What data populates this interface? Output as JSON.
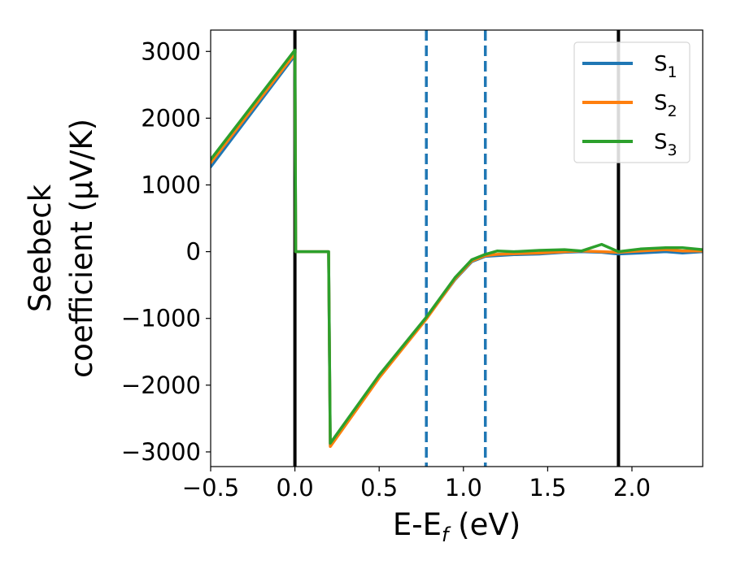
{
  "chart_data": {
    "type": "line",
    "xlabel": {
      "base": "E-E",
      "sub": "f",
      "suffix": " (eV)"
    },
    "ylabel": {
      "line1": "Seebeck",
      "line2": "coefficient  (μV/K)"
    },
    "xlim": [
      -0.5,
      2.42
    ],
    "ylim": [
      -3220,
      3320
    ],
    "xticks": [
      {
        "value": -0.5,
        "label": "−0.5"
      },
      {
        "value": 0.0,
        "label": "0.0"
      },
      {
        "value": 0.5,
        "label": "0.5"
      },
      {
        "value": 1.0,
        "label": "1.0"
      },
      {
        "value": 1.5,
        "label": "1.5"
      },
      {
        "value": 2.0,
        "label": "2.0"
      }
    ],
    "yticks": [
      {
        "value": 3000,
        "label": "3000"
      },
      {
        "value": 2000,
        "label": "2000"
      },
      {
        "value": 1000,
        "label": "1000"
      },
      {
        "value": 0,
        "label": "0"
      },
      {
        "value": -1000,
        "label": "−1000"
      },
      {
        "value": -2000,
        "label": "−2000"
      },
      {
        "value": -3000,
        "label": "−3000"
      }
    ],
    "vlines": [
      {
        "x": 0.0,
        "color": "#000000",
        "style": "solid"
      },
      {
        "x": 1.92,
        "color": "#000000",
        "style": "solid"
      },
      {
        "x": 0.78,
        "color": "#1f77b4",
        "style": "dashed"
      },
      {
        "x": 1.13,
        "color": "#1f77b4",
        "style": "dashed"
      }
    ],
    "legend_position": "top-right",
    "series": [
      {
        "name": {
          "base": "S",
          "sub": "1"
        },
        "color": "#1f77b4",
        "x": [
          -0.5,
          0.0,
          0.005,
          0.2,
          0.21,
          0.5,
          0.78,
          0.95,
          1.05,
          1.13,
          1.2,
          1.3,
          1.45,
          1.6,
          1.7,
          1.82,
          1.92,
          2.05,
          2.2,
          2.3,
          2.42
        ],
        "y": [
          1270,
          2940,
          0,
          0,
          -2910,
          -1880,
          -1000,
          -420,
          -150,
          -70,
          -60,
          -45,
          -35,
          -10,
          0,
          -10,
          -35,
          -20,
          0,
          -20,
          0
        ]
      },
      {
        "name": {
          "base": "S",
          "sub": "2"
        },
        "color": "#ff7f0e",
        "x": [
          -0.5,
          0.0,
          0.005,
          0.2,
          0.21,
          0.5,
          0.78,
          0.95,
          1.05,
          1.13,
          1.2,
          1.3,
          1.45,
          1.6,
          1.7,
          1.82,
          1.92,
          2.05,
          2.2,
          2.3,
          2.42
        ],
        "y": [
          1330,
          2970,
          0,
          0,
          -2920,
          -1890,
          -1010,
          -410,
          -140,
          -60,
          -40,
          -30,
          -20,
          0,
          10,
          0,
          -10,
          10,
          30,
          10,
          10
        ]
      },
      {
        "name": {
          "base": "S",
          "sub": "3"
        },
        "color": "#2ca02c",
        "x": [
          -0.5,
          0.0,
          0.005,
          0.2,
          0.21,
          0.5,
          0.78,
          0.95,
          1.05,
          1.13,
          1.2,
          1.3,
          1.45,
          1.6,
          1.7,
          1.82,
          1.92,
          2.05,
          2.2,
          2.3,
          2.42
        ],
        "y": [
          1380,
          3020,
          0,
          0,
          -2870,
          -1850,
          -980,
          -390,
          -120,
          -40,
          10,
          0,
          20,
          30,
          10,
          110,
          0,
          40,
          60,
          60,
          30
        ]
      }
    ]
  }
}
